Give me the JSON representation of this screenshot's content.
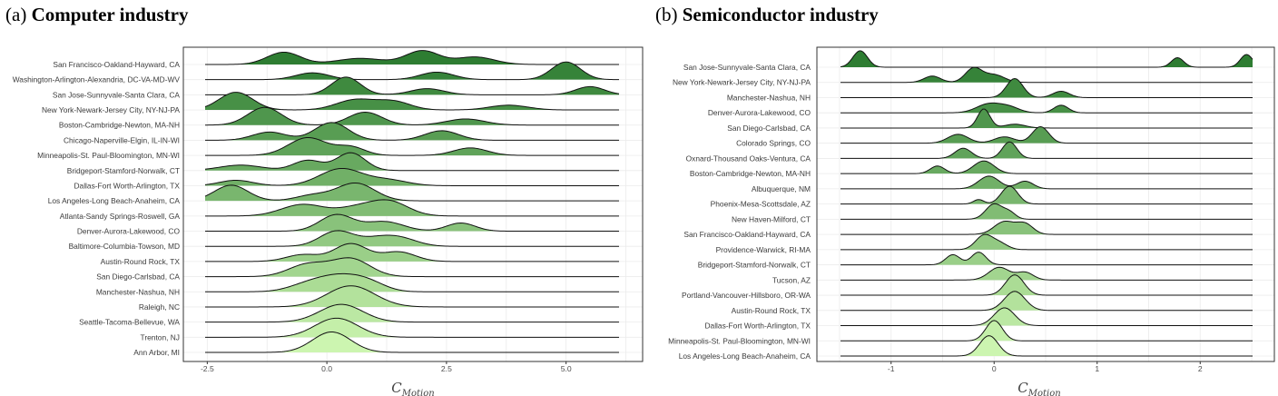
{
  "panel_a": {
    "tag": "(a)",
    "title": "Computer industry"
  },
  "panel_b": {
    "tag": "(b)",
    "title": "Semiconductor industry"
  },
  "colors": {
    "dark": "#2e7d32",
    "light": "#ccf5b0",
    "frame": "#333333",
    "grid": "#ebebeb"
  },
  "chart_data": [
    {
      "type": "ridgeline",
      "title": "Computer industry",
      "xlabel_main": "C",
      "xlabel_sub": "Motion",
      "xlim": [
        -3.0,
        6.6
      ],
      "xticks": [
        -2.5,
        0.0,
        2.5,
        5.0
      ],
      "xtick_labels": [
        "-2.5",
        "0.0",
        "2.5",
        "5.0"
      ],
      "grid": true,
      "categories": [
        {
          "name": "San Francisco-Oakland-Hayward, CA",
          "peaks": [
            [
              -0.9,
              0.35,
              0.9
            ],
            [
              0.7,
              0.5,
              0.45
            ],
            [
              2.0,
              0.35,
              1.0
            ],
            [
              3.1,
              0.4,
              0.55
            ]
          ]
        },
        {
          "name": "Washington-Arlington-Alexandria, DC-VA-MD-WV",
          "peaks": [
            [
              -0.3,
              0.35,
              0.5
            ],
            [
              2.3,
              0.35,
              0.55
            ],
            [
              5.0,
              0.3,
              1.3
            ]
          ]
        },
        {
          "name": "San Jose-Sunnyvale-Santa Clara, CA",
          "peaks": [
            [
              0.4,
              0.3,
              1.3
            ],
            [
              2.1,
              0.35,
              0.45
            ],
            [
              5.5,
              0.3,
              0.6
            ]
          ]
        },
        {
          "name": "New York-Newark-Jersey City, NY-NJ-PA",
          "peaks": [
            [
              -1.9,
              0.35,
              1.3
            ],
            [
              0.6,
              0.4,
              0.75
            ],
            [
              1.4,
              0.35,
              0.6
            ],
            [
              3.8,
              0.4,
              0.35
            ]
          ]
        },
        {
          "name": "Boston-Cambridge-Newton, MA-NH",
          "peaks": [
            [
              -1.3,
              0.35,
              1.3
            ],
            [
              0.8,
              0.35,
              0.95
            ],
            [
              2.9,
              0.4,
              0.45
            ]
          ]
        },
        {
          "name": "Chicago-Naperville-Elgin, IL-IN-WI",
          "peaks": [
            [
              -1.2,
              0.35,
              0.6
            ],
            [
              0.1,
              0.35,
              1.3
            ],
            [
              2.4,
              0.35,
              0.7
            ]
          ]
        },
        {
          "name": "Minneapolis-St. Paul-Bloomington, MN-WI",
          "peaks": [
            [
              -0.4,
              0.4,
              1.3
            ],
            [
              0.5,
              0.3,
              0.6
            ],
            [
              3.0,
              0.35,
              0.55
            ]
          ]
        },
        {
          "name": "Bridgeport-Stamford-Norwalk, CT",
          "peaks": [
            [
              -1.8,
              0.45,
              0.4
            ],
            [
              -0.4,
              0.3,
              0.75
            ],
            [
              0.5,
              0.3,
              1.3
            ]
          ]
        },
        {
          "name": "Dallas-Fort Worth-Arlington, TX",
          "peaks": [
            [
              -1.9,
              0.35,
              0.4
            ],
            [
              0.3,
              0.45,
              1.25
            ],
            [
              1.3,
              0.4,
              0.4
            ]
          ]
        },
        {
          "name": "Los Angeles-Long Beach-Anaheim, CA",
          "peaks": [
            [
              -2.0,
              0.35,
              1.15
            ],
            [
              -0.3,
              0.35,
              0.4
            ],
            [
              0.6,
              0.4,
              1.3
            ]
          ]
        },
        {
          "name": "Atlanta-Sandy Springs-Roswell, GA",
          "peaks": [
            [
              -0.5,
              0.45,
              0.85
            ],
            [
              0.6,
              0.4,
              0.55
            ],
            [
              1.3,
              0.4,
              1.05
            ]
          ]
        },
        {
          "name": "Denver-Aurora-Lakewood, CO",
          "peaks": [
            [
              0.2,
              0.35,
              1.2
            ],
            [
              1.2,
              0.4,
              0.7
            ],
            [
              2.8,
              0.3,
              0.6
            ]
          ]
        },
        {
          "name": "Baltimore-Columbia-Towson, MD",
          "peaks": [
            [
              0.2,
              0.35,
              1.1
            ],
            [
              1.1,
              0.4,
              0.6
            ],
            [
              1.6,
              0.35,
              0.4
            ]
          ]
        },
        {
          "name": "Austin-Round Rock, TX",
          "peaks": [
            [
              -0.5,
              0.35,
              0.5
            ],
            [
              0.5,
              0.35,
              1.3
            ],
            [
              1.5,
              0.35,
              0.7
            ]
          ]
        },
        {
          "name": "San Diego-Carlsbad, CA",
          "peaks": [
            [
              -0.4,
              0.4,
              0.9
            ],
            [
              0.5,
              0.4,
              1.3
            ]
          ]
        },
        {
          "name": "Manchester-Nashua, NH",
          "peaks": [
            [
              -0.4,
              0.4,
              0.5
            ],
            [
              0.3,
              0.45,
              1.1
            ],
            [
              0.9,
              0.35,
              0.5
            ]
          ]
        },
        {
          "name": "Raleigh, NC",
          "peaks": [
            [
              0.5,
              0.5,
              1.55
            ]
          ]
        },
        {
          "name": "Seattle-Tacoma-Bellevue, WA",
          "peaks": [
            [
              0.3,
              0.45,
              1.3
            ]
          ]
        },
        {
          "name": "Trenton, NJ",
          "peaks": [
            [
              0.2,
              0.45,
              1.4
            ]
          ]
        },
        {
          "name": "Ann Arbor, MI",
          "peaks": [
            [
              0.1,
              0.4,
              1.5
            ]
          ]
        }
      ]
    },
    {
      "type": "ridgeline",
      "title": "Semiconductor industry",
      "xlabel_main": "C",
      "xlabel_sub": "Motion",
      "xlim": [
        -1.72,
        2.72
      ],
      "xticks": [
        -1,
        0,
        1,
        2
      ],
      "xtick_labels": [
        "-1",
        "0",
        "1",
        "2"
      ],
      "grid": true,
      "categories": [
        {
          "name": "San Jose-Sunnyvale-Santa Clara, CA",
          "peaks": [
            [
              -1.3,
              0.07,
              1.3
            ],
            [
              1.78,
              0.06,
              0.75
            ],
            [
              2.45,
              0.06,
              1.0
            ]
          ]
        },
        {
          "name": "New York-Newark-Jersey City, NY-NJ-PA",
          "peaks": [
            [
              -0.6,
              0.08,
              0.5
            ],
            [
              -0.2,
              0.08,
              1.1
            ],
            [
              0.0,
              0.1,
              0.6
            ]
          ]
        },
        {
          "name": "Manchester-Nashua, NH",
          "peaks": [
            [
              0.2,
              0.08,
              1.5
            ],
            [
              0.65,
              0.08,
              0.5
            ]
          ]
        },
        {
          "name": "Denver-Aurora-Lakewood, CO",
          "peaks": [
            [
              -0.05,
              0.12,
              0.7
            ],
            [
              0.15,
              0.1,
              0.4
            ],
            [
              0.65,
              0.07,
              0.6
            ]
          ]
        },
        {
          "name": "San Diego-Carlsbad, CA",
          "peaks": [
            [
              -0.1,
              0.06,
              1.5
            ],
            [
              0.2,
              0.1,
              0.3
            ]
          ]
        },
        {
          "name": "Colorado Springs, CO",
          "peaks": [
            [
              -0.35,
              0.1,
              0.7
            ],
            [
              0.1,
              0.1,
              0.5
            ],
            [
              0.45,
              0.08,
              1.3
            ]
          ]
        },
        {
          "name": "Oxnard-Thousand Oaks-Ventura, CA",
          "peaks": [
            [
              -0.3,
              0.08,
              0.8
            ],
            [
              0.15,
              0.07,
              1.3
            ]
          ]
        },
        {
          "name": "Boston-Cambridge-Newton, MA-NH",
          "peaks": [
            [
              -0.55,
              0.07,
              0.6
            ],
            [
              -0.1,
              0.1,
              1.0
            ]
          ]
        },
        {
          "name": "Albuquerque, NM",
          "peaks": [
            [
              -0.05,
              0.1,
              1.0
            ],
            [
              0.3,
              0.08,
              0.6
            ]
          ]
        },
        {
          "name": "Phoenix-Mesa-Scottsdale, AZ",
          "peaks": [
            [
              -0.15,
              0.05,
              0.35
            ],
            [
              0.15,
              0.08,
              1.4
            ]
          ]
        },
        {
          "name": "New Haven-Milford, CT",
          "peaks": [
            [
              0.0,
              0.08,
              1.2
            ],
            [
              0.15,
              0.06,
              0.5
            ]
          ]
        },
        {
          "name": "San Francisco-Oakland-Hayward, CA",
          "peaks": [
            [
              0.1,
              0.1,
              1.0
            ],
            [
              0.3,
              0.08,
              0.8
            ]
          ]
        },
        {
          "name": "Providence-Warwick, RI-MA",
          "peaks": [
            [
              -0.1,
              0.08,
              1.1
            ],
            [
              0.05,
              0.08,
              0.5
            ]
          ]
        },
        {
          "name": "Bridgeport-Stamford-Norwalk, CT",
          "peaks": [
            [
              -0.4,
              0.07,
              0.8
            ],
            [
              -0.15,
              0.07,
              1.0
            ]
          ]
        },
        {
          "name": "Tucson, AZ",
          "peaks": [
            [
              0.05,
              0.1,
              1.0
            ],
            [
              0.3,
              0.08,
              0.6
            ]
          ]
        },
        {
          "name": "Portland-Vancouver-Hillsboro, OR-WA",
          "peaks": [
            [
              0.2,
              0.09,
              1.6
            ]
          ]
        },
        {
          "name": "Austin-Round Rock, TX",
          "peaks": [
            [
              0.2,
              0.1,
              1.5
            ]
          ]
        },
        {
          "name": "Dallas-Fort Worth-Arlington, TX",
          "peaks": [
            [
              0.1,
              0.1,
              1.4
            ]
          ]
        },
        {
          "name": "Minneapolis-St. Paul-Bloomington, MN-WI",
          "peaks": [
            [
              0.0,
              0.08,
              1.6
            ]
          ]
        },
        {
          "name": "Los Angeles-Long Beach-Anaheim, CA",
          "peaks": [
            [
              -0.05,
              0.09,
              1.6
            ]
          ]
        }
      ]
    }
  ]
}
